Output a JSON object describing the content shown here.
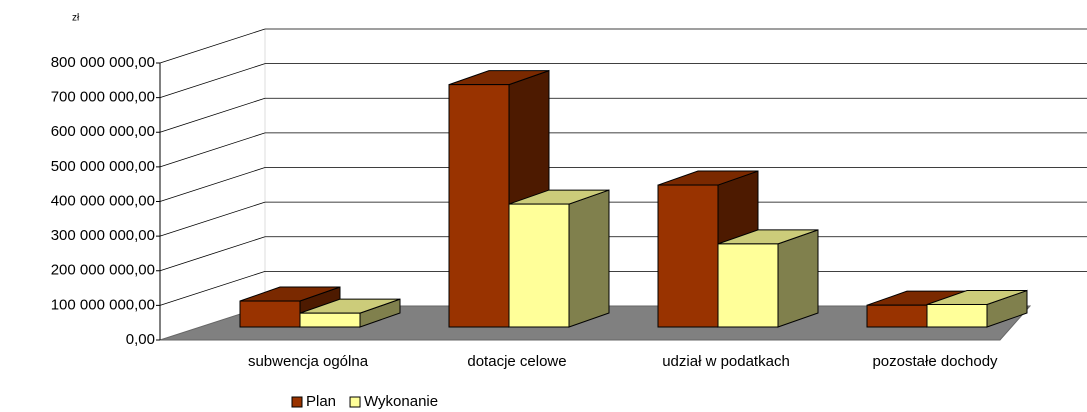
{
  "chart_data": {
    "type": "bar3d",
    "y_unit": "zł",
    "categories": [
      "subwencja ogólna",
      "dotacje celowe",
      "udział w podatkach",
      "pozostałe dochody"
    ],
    "series": [
      {
        "name": "Plan",
        "color": "#993300",
        "values": [
          75000000,
          700000000,
          410000000,
          63000000
        ]
      },
      {
        "name": "Wykonanie",
        "color": "#ffff99",
        "values": [
          40000000,
          355000000,
          240000000,
          65000000
        ]
      }
    ],
    "ylim": [
      0,
      800000000
    ],
    "yticks": [
      {
        "value": 0,
        "label": "0,00"
      },
      {
        "value": 100000000,
        "label": "100 000 000,00"
      },
      {
        "value": 200000000,
        "label": "200 000 000,00"
      },
      {
        "value": 300000000,
        "label": "300 000 000,00"
      },
      {
        "value": 400000000,
        "label": "400 000 000,00"
      },
      {
        "value": 500000000,
        "label": "500 000 000,00"
      },
      {
        "value": 600000000,
        "label": "600 000 000,00"
      },
      {
        "value": 700000000,
        "label": "700 000 000,00"
      },
      {
        "value": 800000000,
        "label": "800 000 000,00"
      }
    ],
    "grid": true,
    "legend": "bottom"
  }
}
